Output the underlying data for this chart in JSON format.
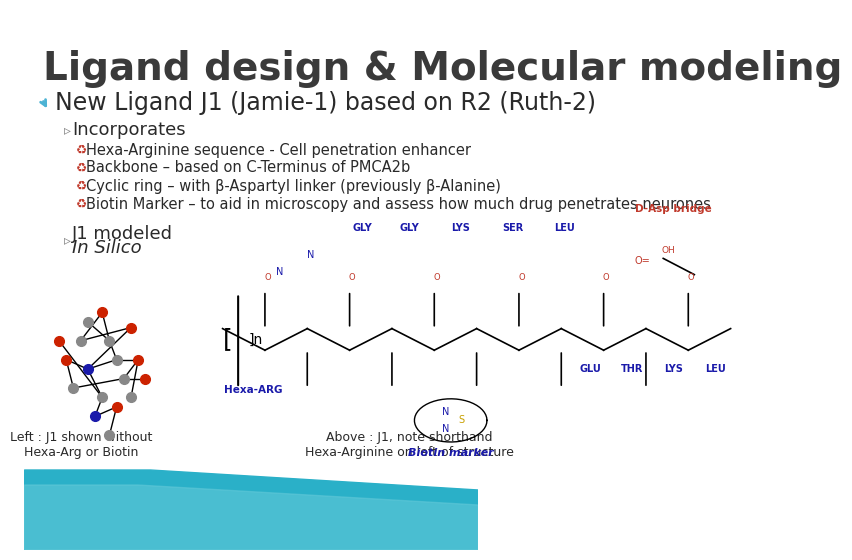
{
  "title": "Ligand design & Molecular modeling",
  "title_color": "#3a3a3a",
  "title_fontsize": 28,
  "title_fontweight": "bold",
  "bg_color": "#ffffff",
  "bullet_color": "#4db3d4",
  "main_bullet": "New Ligand J1 (Jamie-1) based on R2 (Ruth-2)",
  "main_bullet_fontsize": 17,
  "main_bullet_color": "#2a2a2a",
  "sub_bullet_label": "Incorporates",
  "sub_bullet_fontsize": 13,
  "sub_bullet_color": "#2a2a2a",
  "sub_items": [
    "Hexa-Arginine sequence - Cell penetration enhancer",
    "Backbone – based on C-Terminus of PMCA2b",
    "Cyclic ring – with β-Aspartyl linker (previously β-Alanine)",
    "Biotin Marker – to aid in microscopy and assess how much drug penetrates neurones"
  ],
  "sub_item_fontsize": 10.5,
  "sub_item_color": "#2a2a2a",
  "second_sub_label": "J1 modeled",
  "second_sub_italic": "In Silico",
  "caption_left": "Left : J1 shown without\nHexa-Arg or Biotin",
  "caption_right": "Above : J1, note shorthand\nHexa-Arginine on left of structure",
  "caption_fontsize": 9,
  "caption_color": "#2a2a2a",
  "teal_strip_color": "#2ab0c8",
  "bullet_arrow_color": "#4db3d4",
  "sub_bullet_dot_color": "#888888",
  "loop_symbol_color": "#c0392b"
}
